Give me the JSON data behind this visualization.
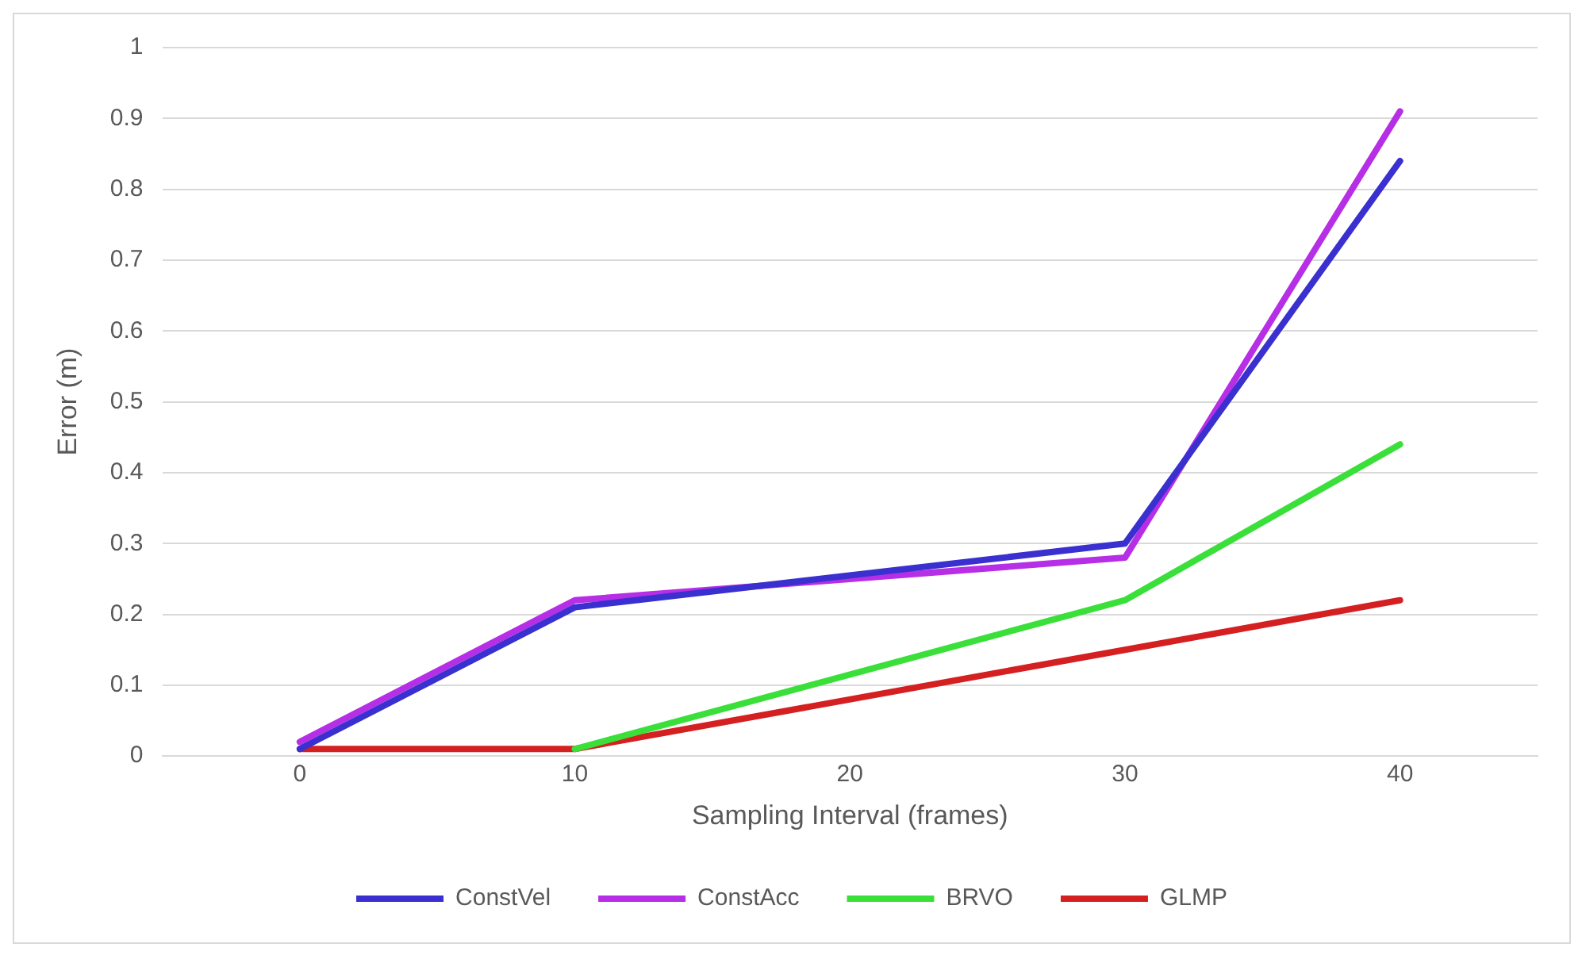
{
  "chart_data": {
    "type": "line",
    "xlabel": "Sampling Interval (frames)",
    "ylabel": "Error (m)",
    "x": [
      0,
      10,
      30,
      40
    ],
    "xlim": [
      -5,
      45
    ],
    "xticks": [
      0,
      10,
      20,
      30,
      40
    ],
    "ylim": [
      0,
      1
    ],
    "yticks": [
      0,
      0.1,
      0.2,
      0.3,
      0.4,
      0.5,
      0.6,
      0.7,
      0.8,
      0.9,
      1
    ],
    "grid": "y",
    "legend": "bottom",
    "marker": "none",
    "series": [
      {
        "name": "ConstVel",
        "color": "#3a2fcf",
        "values": [
          0.01,
          0.21,
          0.3,
          0.84
        ]
      },
      {
        "name": "ConstAcc",
        "color": "#b62ee6",
        "values": [
          0.02,
          0.22,
          0.28,
          0.91
        ]
      },
      {
        "name": "BRVO",
        "color": "#3adf3a",
        "values": [
          null,
          0.01,
          0.22,
          0.44
        ]
      },
      {
        "name": "GLMP",
        "color": "#d42020",
        "values": [
          0.01,
          0.01,
          0.15,
          0.22
        ]
      }
    ]
  }
}
